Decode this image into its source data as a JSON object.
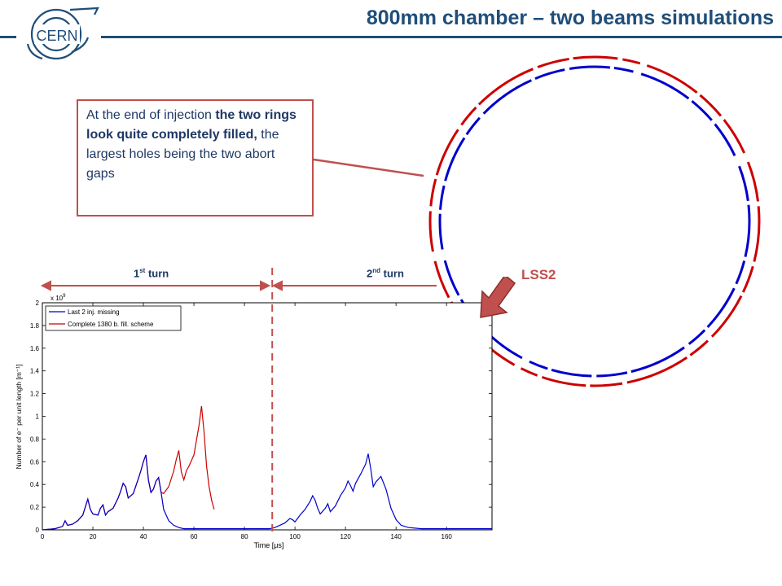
{
  "header": {
    "title": "800mm chamber – two beams simulations",
    "logo_text": "CERN"
  },
  "callout": {
    "text_1": "At the end of injection ",
    "text_bold": "the two rings look quite completely filled,",
    "text_2": " the largest holes being the two abort gaps"
  },
  "turns": {
    "first_num": "1",
    "first_sup": "st",
    "first_word": " turn",
    "second_num": "2",
    "second_sup": "nd",
    "second_word": " turn"
  },
  "lss2_label": "LSS2",
  "colors": {
    "title": "#1F4E79",
    "accent_red": "#C0504D",
    "series_blue": "#0000CC",
    "series_red": "#CC0000"
  },
  "chart_data": {
    "type": "line",
    "xlabel": "Time [μs]",
    "ylabel": "Number of e⁻ per unit length [m⁻¹]",
    "y_exponent": "x 10",
    "y_exponent_power": "9",
    "xlim": [
      0,
      178
    ],
    "ylim": [
      0,
      2
    ],
    "xticks": [
      0,
      20,
      40,
      60,
      80,
      100,
      120,
      140,
      160
    ],
    "yticks": [
      0,
      0.2,
      0.4,
      0.6,
      0.8,
      1,
      1.2,
      1.4,
      1.6,
      1.8,
      2
    ],
    "x_scale_exponent": 9,
    "turn_boundary_x": 91,
    "legend_position": "top-left",
    "series": [
      {
        "name": "Last 2 inj. missing",
        "color": "#0000CC",
        "x": [
          0,
          5,
          8,
          9,
          10,
          12,
          14,
          16,
          17,
          18,
          19,
          20,
          22,
          23,
          24,
          25,
          26,
          28,
          30,
          31,
          32,
          33,
          34,
          36,
          38,
          39,
          40,
          41,
          42,
          43,
          44,
          45,
          46,
          47,
          48,
          50,
          52,
          54,
          56,
          60,
          65,
          70,
          75,
          80,
          85,
          90,
          92,
          94,
          96,
          98,
          99,
          100,
          101,
          102,
          104,
          106,
          107,
          108,
          109,
          110,
          112,
          113,
          114,
          116,
          118,
          120,
          121,
          122,
          123,
          124,
          126,
          128,
          129,
          130,
          131,
          132,
          134,
          136,
          138,
          140,
          142,
          145,
          150,
          160,
          170,
          178
        ],
        "y": [
          0,
          0.01,
          0.03,
          0.08,
          0.04,
          0.05,
          0.08,
          0.13,
          0.2,
          0.27,
          0.18,
          0.14,
          0.13,
          0.19,
          0.22,
          0.13,
          0.16,
          0.19,
          0.28,
          0.34,
          0.41,
          0.38,
          0.28,
          0.32,
          0.45,
          0.52,
          0.6,
          0.66,
          0.44,
          0.33,
          0.36,
          0.43,
          0.46,
          0.33,
          0.18,
          0.08,
          0.04,
          0.02,
          0.01,
          0.01,
          0.01,
          0.01,
          0.01,
          0.01,
          0.01,
          0.01,
          0.02,
          0.04,
          0.06,
          0.1,
          0.09,
          0.07,
          0.1,
          0.13,
          0.18,
          0.25,
          0.3,
          0.26,
          0.19,
          0.14,
          0.19,
          0.23,
          0.16,
          0.21,
          0.3,
          0.37,
          0.43,
          0.39,
          0.34,
          0.41,
          0.49,
          0.58,
          0.67,
          0.54,
          0.38,
          0.42,
          0.47,
          0.36,
          0.19,
          0.09,
          0.04,
          0.02,
          0.01,
          0.01,
          0.01,
          0.01
        ]
      },
      {
        "name": "Complete 1380 b. fill. scheme",
        "color": "#CC0000",
        "x": [
          0,
          5,
          8,
          9,
          10,
          12,
          14,
          16,
          17,
          18,
          19,
          20,
          22,
          23,
          24,
          25,
          26,
          28,
          30,
          31,
          32,
          33,
          34,
          36,
          38,
          39,
          40,
          41,
          42,
          43,
          44,
          45,
          46,
          47,
          48,
          50,
          52,
          53,
          54,
          55,
          56,
          57,
          58,
          60,
          61,
          62,
          63,
          64,
          65,
          66,
          67,
          68
        ],
        "y": [
          0,
          0.01,
          0.03,
          0.08,
          0.04,
          0.05,
          0.08,
          0.13,
          0.2,
          0.27,
          0.18,
          0.14,
          0.13,
          0.19,
          0.22,
          0.13,
          0.16,
          0.19,
          0.28,
          0.34,
          0.41,
          0.38,
          0.28,
          0.32,
          0.45,
          0.52,
          0.6,
          0.66,
          0.44,
          0.33,
          0.36,
          0.43,
          0.46,
          0.33,
          0.32,
          0.38,
          0.52,
          0.62,
          0.7,
          0.51,
          0.44,
          0.52,
          0.56,
          0.66,
          0.79,
          0.92,
          1.09,
          0.86,
          0.56,
          0.38,
          0.26,
          0.18
        ]
      }
    ]
  }
}
